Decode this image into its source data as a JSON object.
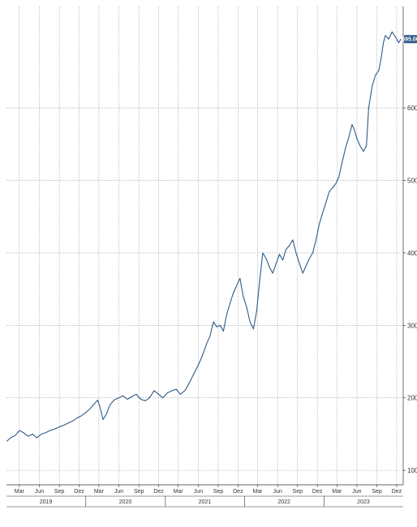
{
  "colors": {
    "line": "#2f5a86",
    "grid": "#9a9a9a",
    "axis": "#333333",
    "label_bg": "#2f5a86"
  },
  "chart_data": {
    "type": "line",
    "title": "",
    "xlabel": "",
    "ylabel": "",
    "ylim": [
      80,
      740
    ],
    "xlim": [
      "2019-01-01",
      "2023-12-31"
    ],
    "grid": true,
    "y_axis_side": "right",
    "yticks": [
      100,
      200,
      300,
      400,
      500,
      600
    ],
    "ytick_labels": [
      "100",
      "200",
      "300",
      "400",
      "500",
      "600"
    ],
    "last_value_label": "695.00",
    "month_ticks": [
      {
        "date": "2019-03-01",
        "label": "Mar"
      },
      {
        "date": "2019-06-01",
        "label": "Jun"
      },
      {
        "date": "2019-09-01",
        "label": "Sep"
      },
      {
        "date": "2019-12-01",
        "label": "Dez"
      },
      {
        "date": "2020-03-01",
        "label": "Mar"
      },
      {
        "date": "2020-06-01",
        "label": "Jun"
      },
      {
        "date": "2020-09-01",
        "label": "Sep"
      },
      {
        "date": "2020-12-01",
        "label": "Dez"
      },
      {
        "date": "2021-03-01",
        "label": "Mar"
      },
      {
        "date": "2021-06-01",
        "label": "Jun"
      },
      {
        "date": "2021-09-01",
        "label": "Sep"
      },
      {
        "date": "2021-12-01",
        "label": "Dez"
      },
      {
        "date": "2022-03-01",
        "label": "Mar"
      },
      {
        "date": "2022-06-01",
        "label": "Jun"
      },
      {
        "date": "2022-09-01",
        "label": "Sep"
      },
      {
        "date": "2022-12-01",
        "label": "Dez"
      },
      {
        "date": "2023-03-01",
        "label": "Mar"
      },
      {
        "date": "2023-06-01",
        "label": "Jun"
      },
      {
        "date": "2023-09-01",
        "label": "Sep"
      },
      {
        "date": "2023-12-01",
        "label": "Dez"
      }
    ],
    "year_ticks": [
      {
        "date": "2019-07-01",
        "label": "2019"
      },
      {
        "date": "2020-07-01",
        "label": "2020"
      },
      {
        "date": "2021-07-01",
        "label": "2021"
      },
      {
        "date": "2022-07-01",
        "label": "2022"
      },
      {
        "date": "2023-07-01",
        "label": "2023"
      }
    ],
    "series": [
      {
        "points": [
          [
            "2019-01-02",
            140
          ],
          [
            "2019-01-20",
            145
          ],
          [
            "2019-02-10",
            148
          ],
          [
            "2019-03-01",
            155
          ],
          [
            "2019-03-20",
            152
          ],
          [
            "2019-04-10",
            147
          ],
          [
            "2019-05-01",
            150
          ],
          [
            "2019-05-20",
            145
          ],
          [
            "2019-06-10",
            150
          ],
          [
            "2019-07-01",
            152
          ],
          [
            "2019-07-20",
            155
          ],
          [
            "2019-08-10",
            157
          ],
          [
            "2019-09-01",
            160
          ],
          [
            "2019-09-20",
            162
          ],
          [
            "2019-10-10",
            165
          ],
          [
            "2019-11-01",
            168
          ],
          [
            "2019-11-20",
            172
          ],
          [
            "2019-12-10",
            175
          ],
          [
            "2020-01-02",
            180
          ],
          [
            "2020-01-20",
            185
          ],
          [
            "2020-02-10",
            192
          ],
          [
            "2020-02-25",
            197
          ],
          [
            "2020-03-10",
            183
          ],
          [
            "2020-03-20",
            170
          ],
          [
            "2020-04-05",
            178
          ],
          [
            "2020-04-20",
            190
          ],
          [
            "2020-05-10",
            197
          ],
          [
            "2020-06-01",
            200
          ],
          [
            "2020-06-20",
            203
          ],
          [
            "2020-07-10",
            198
          ],
          [
            "2020-08-01",
            202
          ],
          [
            "2020-08-20",
            205
          ],
          [
            "2020-09-10",
            198
          ],
          [
            "2020-10-01",
            196
          ],
          [
            "2020-10-20",
            200
          ],
          [
            "2020-11-10",
            210
          ],
          [
            "2020-12-01",
            205
          ],
          [
            "2020-12-20",
            200
          ],
          [
            "2021-01-10",
            207
          ],
          [
            "2021-02-01",
            210
          ],
          [
            "2021-02-20",
            212
          ],
          [
            "2021-03-10",
            205
          ],
          [
            "2021-04-01",
            210
          ],
          [
            "2021-04-20",
            220
          ],
          [
            "2021-05-10",
            232
          ],
          [
            "2021-06-01",
            245
          ],
          [
            "2021-06-20",
            258
          ],
          [
            "2021-07-10",
            275
          ],
          [
            "2021-07-25",
            285
          ],
          [
            "2021-08-10",
            305
          ],
          [
            "2021-08-25",
            298
          ],
          [
            "2021-09-10",
            300
          ],
          [
            "2021-09-25",
            292
          ],
          [
            "2021-10-10",
            315
          ],
          [
            "2021-10-25",
            330
          ],
          [
            "2021-11-10",
            345
          ],
          [
            "2021-11-25",
            355
          ],
          [
            "2021-12-10",
            365
          ],
          [
            "2021-12-25",
            340
          ],
          [
            "2022-01-10",
            325
          ],
          [
            "2022-01-25",
            305
          ],
          [
            "2022-02-10",
            295
          ],
          [
            "2022-02-25",
            320
          ],
          [
            "2022-03-10",
            360
          ],
          [
            "2022-03-25",
            400
          ],
          [
            "2022-04-10",
            392
          ],
          [
            "2022-04-25",
            380
          ],
          [
            "2022-05-10",
            372
          ],
          [
            "2022-05-25",
            385
          ],
          [
            "2022-06-10",
            398
          ],
          [
            "2022-06-25",
            390
          ],
          [
            "2022-07-10",
            405
          ],
          [
            "2022-07-25",
            410
          ],
          [
            "2022-08-10",
            418
          ],
          [
            "2022-08-25",
            400
          ],
          [
            "2022-09-10",
            385
          ],
          [
            "2022-09-25",
            372
          ],
          [
            "2022-10-10",
            382
          ],
          [
            "2022-10-25",
            392
          ],
          [
            "2022-11-10",
            400
          ],
          [
            "2022-11-25",
            418
          ],
          [
            "2022-12-10",
            440
          ],
          [
            "2022-12-25",
            455
          ],
          [
            "2023-01-10",
            470
          ],
          [
            "2023-01-25",
            485
          ],
          [
            "2023-02-10",
            490
          ],
          [
            "2023-02-25",
            496
          ],
          [
            "2023-03-10",
            505
          ],
          [
            "2023-03-25",
            525
          ],
          [
            "2023-04-10",
            545
          ],
          [
            "2023-04-25",
            560
          ],
          [
            "2023-05-10",
            577
          ],
          [
            "2023-05-20",
            570
          ],
          [
            "2023-06-01",
            558
          ],
          [
            "2023-06-15",
            548
          ],
          [
            "2023-07-01",
            540
          ],
          [
            "2023-07-15",
            548
          ],
          [
            "2023-07-25",
            600
          ],
          [
            "2023-08-10",
            630
          ],
          [
            "2023-08-25",
            645
          ],
          [
            "2023-09-10",
            652
          ],
          [
            "2023-09-20",
            668
          ],
          [
            "2023-10-01",
            690
          ],
          [
            "2023-10-10",
            700
          ],
          [
            "2023-10-25",
            695
          ],
          [
            "2023-11-10",
            705
          ],
          [
            "2023-11-25",
            698
          ],
          [
            "2023-12-10",
            690
          ],
          [
            "2023-12-20",
            695
          ]
        ]
      }
    ]
  }
}
